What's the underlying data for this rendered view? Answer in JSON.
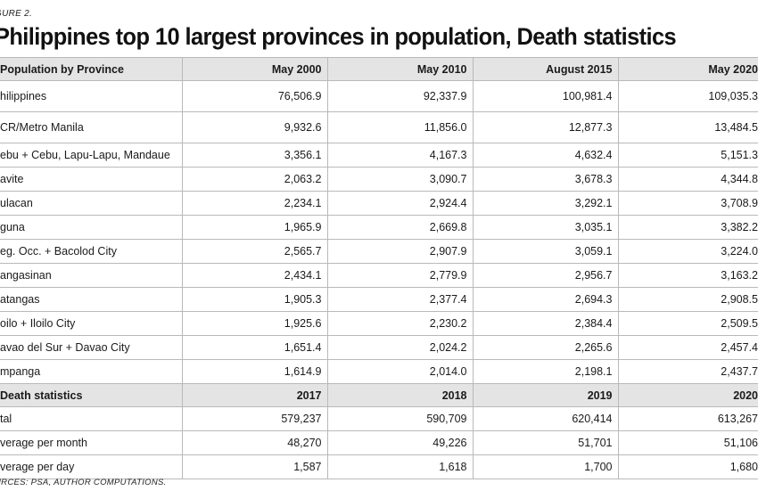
{
  "figure_label": "GURE 2.",
  "title": "Philippines top 10 largest provinces in population, Death statistics",
  "population_section": {
    "header": {
      "label": "Population by Province",
      "columns": [
        "May 2000",
        "May 2010",
        "August 2015",
        "May 2020"
      ]
    },
    "rows": [
      {
        "name": "hilippines",
        "values": [
          "76,506.9",
          "92,337.9",
          "100,981.4",
          "109,035.3"
        ]
      },
      {
        "name": "CR/Metro Manila",
        "values": [
          "9,932.6",
          "11,856.0",
          "12,877.3",
          "13,484.5"
        ]
      },
      {
        "name": "ebu + Cebu, Lapu-Lapu, Mandaue",
        "values": [
          "3,356.1",
          "4,167.3",
          "4,632.4",
          "5,151.3"
        ]
      },
      {
        "name": "avite",
        "values": [
          "2,063.2",
          "3,090.7",
          "3,678.3",
          "4,344.8"
        ]
      },
      {
        "name": "ulacan",
        "values": [
          "2,234.1",
          "2,924.4",
          "3,292.1",
          "3,708.9"
        ]
      },
      {
        "name": "guna",
        "values": [
          "1,965.9",
          "2,669.8",
          "3,035.1",
          "3,382.2"
        ]
      },
      {
        "name": "eg. Occ. + Bacolod City",
        "values": [
          "2,565.7",
          "2,907.9",
          "3,059.1",
          "3,224.0"
        ]
      },
      {
        "name": "angasinan",
        "values": [
          "2,434.1",
          "2,779.9",
          "2,956.7",
          "3,163.2"
        ]
      },
      {
        "name": "atangas",
        "values": [
          "1,905.3",
          "2,377.4",
          "2,694.3",
          "2,908.5"
        ]
      },
      {
        "name": "oilo + Iloilo City",
        "values": [
          "1,925.6",
          "2,230.2",
          "2,384.4",
          "2,509.5"
        ]
      },
      {
        "name": "avao del Sur + Davao City",
        "values": [
          "1,651.4",
          "2,024.2",
          "2,265.6",
          "2,457.4"
        ]
      },
      {
        "name": "mpanga",
        "values": [
          "1,614.9",
          "2,014.0",
          "2,198.1",
          "2,437.7"
        ]
      }
    ]
  },
  "death_section": {
    "header": {
      "label": "Death statistics",
      "columns": [
        "2017",
        "2018",
        "2019",
        "2020"
      ]
    },
    "rows": [
      {
        "name": "tal",
        "values": [
          "579,237",
          "590,709",
          "620,414",
          "613,267"
        ]
      },
      {
        "name": "verage per month",
        "values": [
          "48,270",
          "49,226",
          "51,701",
          "51,106"
        ]
      },
      {
        "name": "verage per day",
        "values": [
          "1,587",
          "1,618",
          "1,700",
          "1,680"
        ]
      }
    ]
  },
  "source": "URCES: PSA, AUTHOR COMPUTATIONS."
}
